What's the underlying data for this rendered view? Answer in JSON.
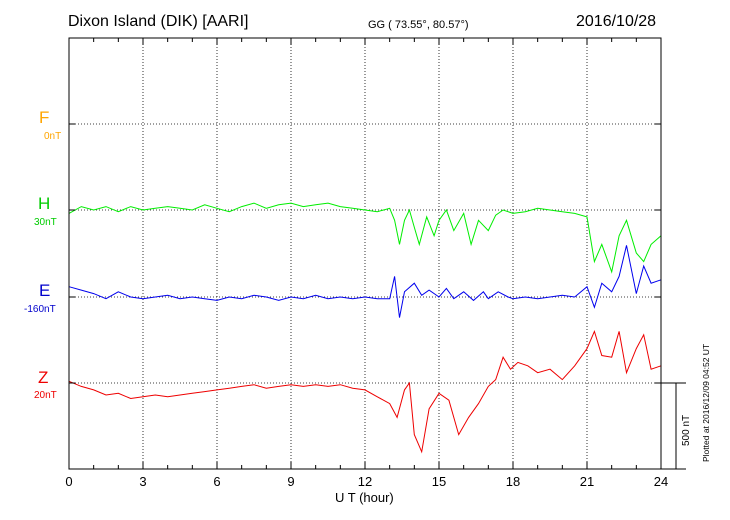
{
  "header": {
    "station": "Dixon Island (DIK)  [AARI]",
    "coords": "GG ( 73.55°,  80.57°)",
    "date": "2016/10/28"
  },
  "footer": {
    "plotted": "Plotted at 2016/12/09 04:52 UT",
    "scale": "500 nT"
  },
  "components": [
    {
      "letter": "F",
      "offset": "0nT",
      "color": "#ffa500"
    },
    {
      "letter": "H",
      "offset": "30nT",
      "color": "#00cc00"
    },
    {
      "letter": "E",
      "offset": "-160nT",
      "color": "#0000cc"
    },
    {
      "letter": "Z",
      "offset": "20nT",
      "color": "#ee0000"
    }
  ],
  "chart_data": {
    "type": "line",
    "xlabel": "U T (hour)",
    "xlim": [
      0,
      24
    ],
    "xticks": [
      0,
      3,
      6,
      9,
      12,
      15,
      18,
      21,
      24
    ],
    "grid": true,
    "scale_bar_nT": 500,
    "y_units": "nT relative to each component baseline",
    "series": [
      {
        "name": "H",
        "color": "#00ee00",
        "points": [
          [
            0,
            -20
          ],
          [
            0.5,
            20
          ],
          [
            1,
            0
          ],
          [
            1.5,
            20
          ],
          [
            2,
            -10
          ],
          [
            2.5,
            20
          ],
          [
            3,
            0
          ],
          [
            3.5,
            10
          ],
          [
            4,
            20
          ],
          [
            4.5,
            10
          ],
          [
            5,
            0
          ],
          [
            5.5,
            30
          ],
          [
            6,
            10
          ],
          [
            6.5,
            -10
          ],
          [
            7,
            20
          ],
          [
            7.5,
            40
          ],
          [
            8,
            10
          ],
          [
            8.5,
            30
          ],
          [
            9,
            40
          ],
          [
            9.5,
            20
          ],
          [
            10,
            30
          ],
          [
            10.5,
            40
          ],
          [
            11,
            20
          ],
          [
            11.5,
            10
          ],
          [
            12,
            0
          ],
          [
            12.5,
            -10
          ],
          [
            13,
            10
          ],
          [
            13.2,
            -60
          ],
          [
            13.4,
            -200
          ],
          [
            13.6,
            -60
          ],
          [
            13.8,
            0
          ],
          [
            14,
            -100
          ],
          [
            14.2,
            -200
          ],
          [
            14.5,
            -40
          ],
          [
            14.8,
            -150
          ],
          [
            15,
            -60
          ],
          [
            15.3,
            0
          ],
          [
            15.6,
            -120
          ],
          [
            16,
            -20
          ],
          [
            16.3,
            -200
          ],
          [
            16.6,
            -60
          ],
          [
            17,
            -120
          ],
          [
            17.3,
            -30
          ],
          [
            17.6,
            0
          ],
          [
            18,
            -20
          ],
          [
            18.5,
            -10
          ],
          [
            19,
            10
          ],
          [
            19.5,
            0
          ],
          [
            20,
            -10
          ],
          [
            20.5,
            -20
          ],
          [
            21,
            -40
          ],
          [
            21.3,
            -300
          ],
          [
            21.6,
            -200
          ],
          [
            22,
            -360
          ],
          [
            22.3,
            -150
          ],
          [
            22.6,
            -60
          ],
          [
            23,
            -250
          ],
          [
            23.3,
            -300
          ],
          [
            23.6,
            -200
          ],
          [
            24,
            -150
          ]
        ]
      },
      {
        "name": "E",
        "color": "#0000ee",
        "points": [
          [
            0,
            60
          ],
          [
            0.5,
            40
          ],
          [
            1,
            20
          ],
          [
            1.5,
            -10
          ],
          [
            2,
            30
          ],
          [
            2.5,
            0
          ],
          [
            3,
            -10
          ],
          [
            3.5,
            0
          ],
          [
            4,
            10
          ],
          [
            4.5,
            -10
          ],
          [
            5,
            0
          ],
          [
            5.5,
            -10
          ],
          [
            6,
            -20
          ],
          [
            6.5,
            0
          ],
          [
            7,
            -10
          ],
          [
            7.5,
            10
          ],
          [
            8,
            0
          ],
          [
            8.5,
            -20
          ],
          [
            9,
            0
          ],
          [
            9.5,
            -10
          ],
          [
            10,
            10
          ],
          [
            10.5,
            -10
          ],
          [
            11,
            0
          ],
          [
            11.5,
            -10
          ],
          [
            12,
            0
          ],
          [
            12.5,
            -10
          ],
          [
            13,
            -10
          ],
          [
            13.2,
            120
          ],
          [
            13.4,
            -120
          ],
          [
            13.6,
            30
          ],
          [
            14,
            80
          ],
          [
            14.3,
            10
          ],
          [
            14.6,
            40
          ],
          [
            15,
            0
          ],
          [
            15.3,
            50
          ],
          [
            15.6,
            -10
          ],
          [
            16,
            30
          ],
          [
            16.4,
            -20
          ],
          [
            16.8,
            30
          ],
          [
            17,
            -10
          ],
          [
            17.4,
            30
          ],
          [
            17.8,
            0
          ],
          [
            18,
            -10
          ],
          [
            18.5,
            0
          ],
          [
            19,
            -10
          ],
          [
            19.5,
            0
          ],
          [
            20,
            10
          ],
          [
            20.5,
            0
          ],
          [
            21,
            60
          ],
          [
            21.3,
            -60
          ],
          [
            21.6,
            80
          ],
          [
            22,
            30
          ],
          [
            22.3,
            120
          ],
          [
            22.6,
            300
          ],
          [
            23,
            20
          ],
          [
            23.3,
            180
          ],
          [
            23.6,
            80
          ],
          [
            24,
            100
          ]
        ]
      },
      {
        "name": "Z",
        "color": "#ee0000",
        "points": [
          [
            0,
            10
          ],
          [
            0.5,
            -20
          ],
          [
            1,
            -40
          ],
          [
            1.5,
            -70
          ],
          [
            2,
            -60
          ],
          [
            2.5,
            -90
          ],
          [
            3,
            -80
          ],
          [
            3.5,
            -70
          ],
          [
            4,
            -80
          ],
          [
            4.5,
            -70
          ],
          [
            5,
            -60
          ],
          [
            5.5,
            -50
          ],
          [
            6,
            -40
          ],
          [
            6.5,
            -30
          ],
          [
            7,
            -20
          ],
          [
            7.5,
            -10
          ],
          [
            8,
            -30
          ],
          [
            8.5,
            -20
          ],
          [
            9,
            -10
          ],
          [
            9.5,
            -20
          ],
          [
            10,
            -10
          ],
          [
            10.5,
            -20
          ],
          [
            11,
            -10
          ],
          [
            11.5,
            -30
          ],
          [
            12,
            -40
          ],
          [
            12.5,
            -80
          ],
          [
            13,
            -120
          ],
          [
            13.3,
            -200
          ],
          [
            13.6,
            -40
          ],
          [
            13.8,
            0
          ],
          [
            14,
            -300
          ],
          [
            14.3,
            -400
          ],
          [
            14.6,
            -150
          ],
          [
            15,
            -60
          ],
          [
            15.4,
            -100
          ],
          [
            15.8,
            -300
          ],
          [
            16.2,
            -200
          ],
          [
            16.6,
            -120
          ],
          [
            17,
            -20
          ],
          [
            17.3,
            20
          ],
          [
            17.6,
            150
          ],
          [
            17.9,
            80
          ],
          [
            18.2,
            120
          ],
          [
            18.6,
            100
          ],
          [
            19,
            60
          ],
          [
            19.5,
            80
          ],
          [
            20,
            20
          ],
          [
            20.5,
            100
          ],
          [
            21,
            200
          ],
          [
            21.3,
            300
          ],
          [
            21.6,
            160
          ],
          [
            22,
            150
          ],
          [
            22.3,
            300
          ],
          [
            22.6,
            60
          ],
          [
            23,
            200
          ],
          [
            23.3,
            280
          ],
          [
            23.6,
            80
          ],
          [
            24,
            100
          ]
        ]
      }
    ]
  }
}
